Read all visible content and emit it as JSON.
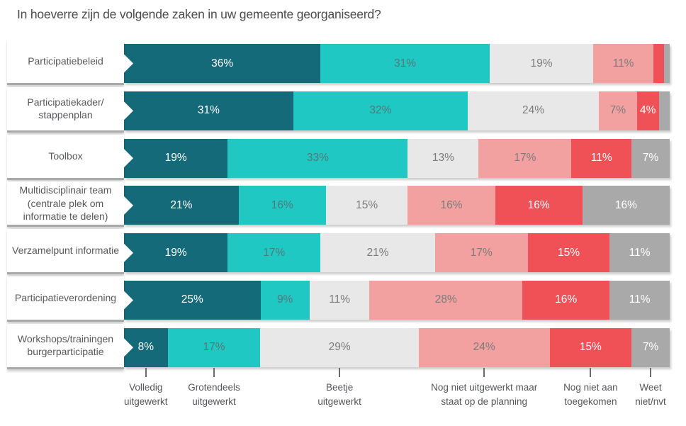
{
  "title": "In hoeverre zijn de volgende zaken in uw gemeente georganiseerd?",
  "chart_data": {
    "type": "bar",
    "variant": "horizontal-stacked",
    "title": "In hoeverre zijn de volgende zaken in uw gemeente georganiseerd?",
    "xlim": [
      0,
      100
    ],
    "unit": "%",
    "legend_position": "bottom",
    "legend": [
      {
        "label": "Volledig\nuitgewerkt",
        "color": "#156A79",
        "value_text_color": "#FFFFFF"
      },
      {
        "label": "Grotendeels\nuitgewerkt",
        "color": "#1FC8C2",
        "value_text_color": "#54787A"
      },
      {
        "label": "Beetje\nuitgewerkt",
        "color": "#E8E8E8",
        "value_text_color": "#7C7C7C"
      },
      {
        "label": "Nog niet uitgewerkt maar\nstaat op de planning",
        "color": "#F2A0A0",
        "value_text_color": "#7C7C7C"
      },
      {
        "label": "Nog niet aan\ntoegekomen",
        "color": "#EF5157",
        "value_text_color": "#FFFFFF"
      },
      {
        "label": "Weet\nniet/nvt",
        "color": "#A9A9A9",
        "value_text_color": "#FFFFFF"
      }
    ],
    "rows": [
      {
        "category": "Participatiebeleid",
        "values": [
          36,
          31,
          19,
          11,
          2,
          1
        ],
        "value_labels": [
          "36%",
          "31%",
          "19%",
          "11%",
          "",
          ""
        ]
      },
      {
        "category": "Participatiekader/\nstappenplan",
        "values": [
          31,
          32,
          24,
          7,
          4,
          2
        ],
        "value_labels": [
          "31%",
          "32%",
          "24%",
          "7%",
          "4%",
          ""
        ]
      },
      {
        "category": "Toolbox",
        "values": [
          19,
          33,
          13,
          17,
          11,
          7
        ],
        "value_labels": [
          "19%",
          "33%",
          "13%",
          "17%",
          "11%",
          "7%"
        ]
      },
      {
        "category": "Multidisciplinair team\n(centrale plek om\ninformatie te delen)",
        "values": [
          21,
          16,
          15,
          16,
          16,
          16
        ],
        "value_labels": [
          "21%",
          "16%",
          "15%",
          "16%",
          "16%",
          "16%"
        ]
      },
      {
        "category": "Verzamelpunt informatie",
        "values": [
          19,
          17,
          21,
          17,
          15,
          11
        ],
        "value_labels": [
          "19%",
          "17%",
          "21%",
          "17%",
          "15%",
          "11%"
        ]
      },
      {
        "category": "Participatieverordening",
        "values": [
          25,
          9,
          11,
          28,
          16,
          11
        ],
        "value_labels": [
          "25%",
          "9%",
          "11%",
          "28%",
          "16%",
          "11%"
        ]
      },
      {
        "category": "Workshops/trainingen\nburgerparticipatie",
        "values": [
          8,
          17,
          29,
          24,
          15,
          7
        ],
        "value_labels": [
          "8%",
          "17%",
          "29%",
          "24%",
          "15%",
          "7%"
        ]
      }
    ]
  }
}
